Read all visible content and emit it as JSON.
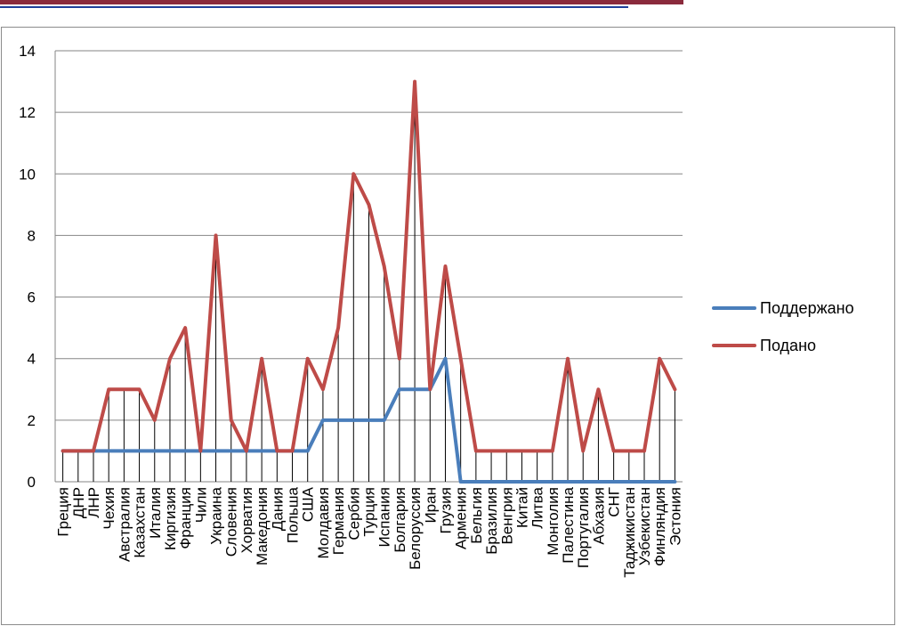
{
  "colors": {
    "header_bar": "#8a2a3c",
    "header_line": "#1f3f9a",
    "grid": "#868686",
    "drop_lines": "#000000"
  },
  "chart_data": {
    "type": "line",
    "title": "",
    "xlabel": "",
    "ylabel": "",
    "ylim": [
      0,
      14
    ],
    "yticks": [
      0,
      2,
      4,
      6,
      8,
      10,
      12,
      14
    ],
    "grid": true,
    "legend_position": "right",
    "categories": [
      "Греция",
      "ДНР",
      "ЛНР",
      "Чехия",
      "Австралия",
      "Казахстан",
      "Италия",
      "Киргизия",
      "Франция",
      "Чили",
      "Украина",
      "Словения",
      "Хорватия",
      "Македония",
      "Дания",
      "Польша",
      "США",
      "Молдавия",
      "Германия",
      "Сербия",
      "Турция",
      "Испания",
      "Болгария",
      "Белоруссия",
      "Иран",
      "Грузия",
      "Армения",
      "Бельгия",
      "Бразилия",
      "Венгрия",
      "Китай",
      "Литва",
      "Монголия",
      "Палестина",
      "Португалия",
      "Абхазия",
      "СНГ",
      "Таджикистан",
      "Узбекистан",
      "Финляндия",
      "Эстония"
    ],
    "series": [
      {
        "name": "Поддержано",
        "color": "#4a7ebb",
        "values": [
          1,
          1,
          1,
          1,
          1,
          1,
          1,
          1,
          1,
          1,
          1,
          1,
          1,
          1,
          1,
          1,
          1,
          2,
          2,
          2,
          2,
          2,
          3,
          3,
          3,
          4,
          0,
          0,
          0,
          0,
          0,
          0,
          0,
          0,
          0,
          0,
          0,
          0,
          0,
          0,
          0
        ]
      },
      {
        "name": "Подано",
        "color": "#be4b48",
        "values": [
          1,
          1,
          1,
          3,
          3,
          3,
          2,
          4,
          5,
          1,
          8,
          2,
          1,
          4,
          1,
          1,
          4,
          3,
          5,
          10,
          9,
          7,
          4,
          13,
          3,
          7,
          4,
          1,
          1,
          1,
          1,
          1,
          1,
          4,
          1,
          3,
          1,
          1,
          1,
          4,
          3
        ]
      }
    ]
  }
}
